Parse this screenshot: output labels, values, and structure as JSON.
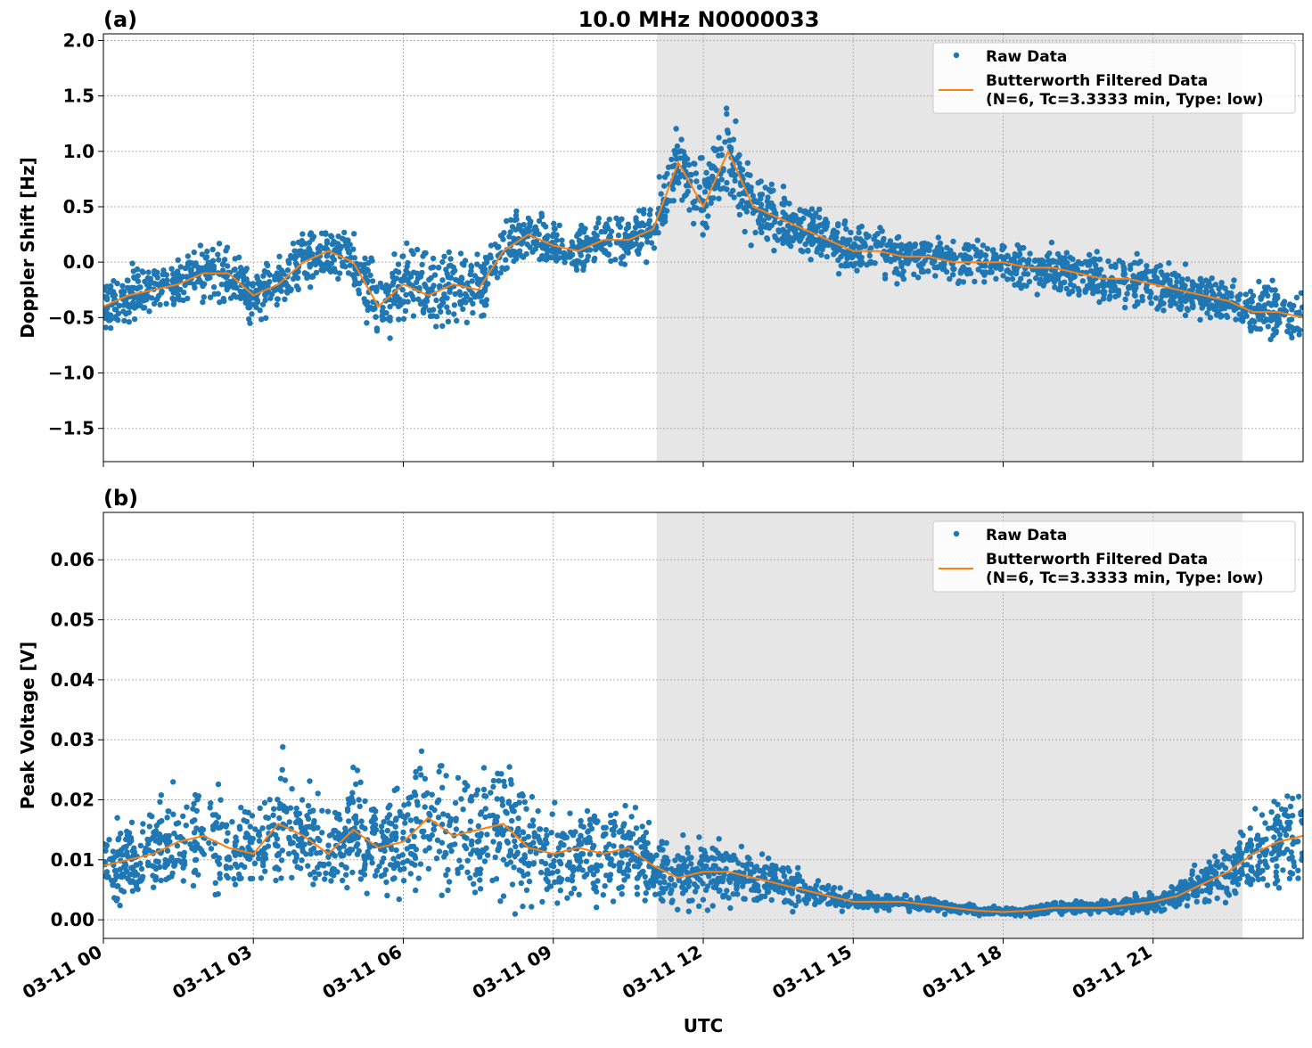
{
  "title": "10.0 MHz N0000033",
  "colors": {
    "raw": "#1f77b4",
    "filtered": "#ff7f0e",
    "shade": "#e6e6e6"
  },
  "xlabel": "UTC",
  "x_tick_labels": [
    "03-11 00",
    "03-11 03",
    "03-11 06",
    "03-11 09",
    "03-11 12",
    "03-11 15",
    "03-11 18",
    "03-11 21"
  ],
  "x_tick_hours": [
    0,
    3,
    6,
    9,
    12,
    15,
    18,
    21
  ],
  "xlim_hours": [
    0,
    24
  ],
  "shaded_interval_hours": [
    11.07,
    22.79
  ],
  "legend": {
    "raw": "Raw Data",
    "filtered_line1": "Butterworth Filtered Data",
    "filtered_line2": "(N=6, Tc=3.3333 min, Type: low)",
    "placement": "top-right"
  },
  "chart_data": [
    {
      "type": "scatter+line",
      "panel_label": "(a)",
      "ylabel": "Doppler Shift [Hz]",
      "ylim": [
        -1.8,
        2.06
      ],
      "y_ticks": [
        -1.5,
        -1.0,
        -0.5,
        0.0,
        0.5,
        1.0,
        1.5,
        2.0
      ],
      "y_tick_labels": [
        "−1.5",
        "−1.0",
        "−0.5",
        "0.0",
        "0.5",
        "1.0",
        "1.5",
        "2.0"
      ],
      "grid": true,
      "x_hours": [
        0,
        0.5,
        1,
        1.5,
        2,
        2.5,
        3,
        3.5,
        4,
        4.5,
        5,
        5.5,
        6,
        6.5,
        7,
        7.5,
        8,
        8.5,
        9,
        9.5,
        10,
        10.5,
        11,
        11.5,
        12,
        12.5,
        13,
        13.5,
        14,
        14.5,
        15,
        15.5,
        16,
        16.5,
        17,
        17.5,
        18,
        18.5,
        19,
        19.5,
        20,
        20.5,
        21,
        21.5,
        22,
        22.5,
        23,
        23.5,
        24
      ],
      "series": [
        {
          "name": "Butterworth Filtered Data",
          "values": [
            -0.4,
            -0.3,
            -0.25,
            -0.2,
            -0.1,
            -0.1,
            -0.3,
            -0.2,
            0.0,
            0.1,
            0.0,
            -0.4,
            -0.2,
            -0.3,
            -0.2,
            -0.25,
            0.1,
            0.25,
            0.15,
            0.1,
            0.2,
            0.2,
            0.3,
            0.9,
            0.5,
            1.0,
            0.5,
            0.4,
            0.3,
            0.2,
            0.1,
            0.1,
            0.05,
            0.05,
            0.0,
            0.0,
            0.0,
            -0.05,
            -0.05,
            -0.1,
            -0.15,
            -0.15,
            -0.2,
            -0.25,
            -0.3,
            -0.35,
            -0.45,
            -0.45,
            -0.5
          ]
        },
        {
          "name": "Raw Data",
          "halfwidth": [
            0.35,
            0.35,
            0.35,
            0.35,
            0.35,
            0.35,
            0.35,
            0.35,
            0.35,
            0.35,
            0.4,
            0.45,
            0.5,
            0.5,
            0.45,
            0.45,
            0.35,
            0.3,
            0.3,
            0.3,
            0.3,
            0.3,
            0.35,
            0.45,
            0.5,
            0.5,
            0.45,
            0.4,
            0.35,
            0.3,
            0.3,
            0.3,
            0.3,
            0.3,
            0.25,
            0.25,
            0.25,
            0.3,
            0.3,
            0.3,
            0.3,
            0.3,
            0.3,
            0.3,
            0.3,
            0.3,
            0.35,
            0.35,
            0.35
          ]
        }
      ]
    },
    {
      "type": "scatter+line",
      "panel_label": "(b)",
      "ylabel": "Peak Voltage [V]",
      "ylim": [
        -0.0031,
        0.0679
      ],
      "y_ticks": [
        0,
        0.01,
        0.02,
        0.03,
        0.04,
        0.05,
        0.06
      ],
      "y_tick_labels": [
        "0.00",
        "0.01",
        "0.02",
        "0.03",
        "0.04",
        "0.05",
        "0.06"
      ],
      "grid": true,
      "x_hours": [
        0,
        0.5,
        1,
        1.5,
        2,
        2.5,
        3,
        3.5,
        4,
        4.5,
        5,
        5.5,
        6,
        6.5,
        7,
        7.5,
        8,
        8.5,
        9,
        9.5,
        10,
        10.5,
        11,
        11.5,
        12,
        12.5,
        13,
        13.5,
        14,
        14.5,
        15,
        15.5,
        16,
        16.5,
        17,
        17.5,
        18,
        18.5,
        19,
        19.5,
        20,
        20.5,
        21,
        21.5,
        22,
        22.5,
        23,
        23.5,
        24
      ],
      "series": [
        {
          "name": "Butterworth Filtered Data",
          "values": [
            0.009,
            0.01,
            0.011,
            0.013,
            0.014,
            0.012,
            0.011,
            0.016,
            0.014,
            0.011,
            0.015,
            0.012,
            0.013,
            0.017,
            0.014,
            0.015,
            0.016,
            0.012,
            0.011,
            0.012,
            0.011,
            0.012,
            0.009,
            0.007,
            0.008,
            0.008,
            0.007,
            0.006,
            0.005,
            0.004,
            0.003,
            0.003,
            0.003,
            0.0025,
            0.002,
            0.0015,
            0.0013,
            0.0015,
            0.002,
            0.002,
            0.002,
            0.0025,
            0.003,
            0.004,
            0.006,
            0.008,
            0.011,
            0.013,
            0.014
          ]
        },
        {
          "name": "Raw Data",
          "halfwidth": [
            0.008,
            0.009,
            0.01,
            0.012,
            0.013,
            0.011,
            0.01,
            0.014,
            0.012,
            0.01,
            0.014,
            0.012,
            0.013,
            0.016,
            0.015,
            0.016,
            0.016,
            0.012,
            0.011,
            0.011,
            0.01,
            0.011,
            0.008,
            0.007,
            0.008,
            0.007,
            0.006,
            0.005,
            0.004,
            0.003,
            0.002,
            0.002,
            0.002,
            0.0015,
            0.0012,
            0.001,
            0.001,
            0.0012,
            0.0015,
            0.0015,
            0.0015,
            0.002,
            0.0025,
            0.003,
            0.005,
            0.007,
            0.009,
            0.011,
            0.012
          ]
        }
      ]
    }
  ]
}
